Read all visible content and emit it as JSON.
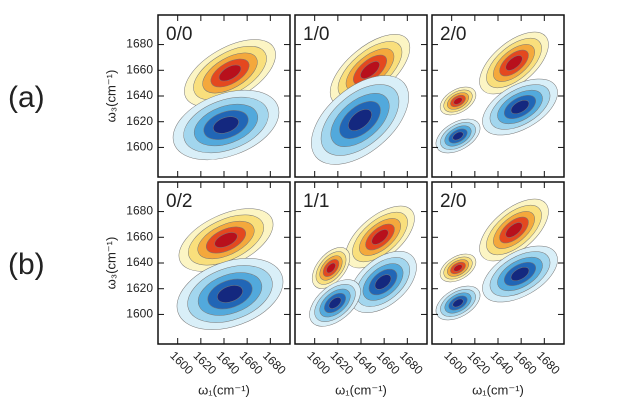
{
  "chart_data": {
    "type": "contour",
    "row_labels": [
      "(a)",
      "(b)"
    ],
    "panels": [
      {
        "label": "0/0"
      },
      {
        "label": "1/0"
      },
      {
        "label": "2/0"
      },
      {
        "label": "0/2"
      },
      {
        "label": "1/1"
      },
      {
        "label": "2/0"
      }
    ],
    "ylabels": [
      "ω₃(cm⁻¹)",
      "ω₃(cm⁻¹)"
    ],
    "xlabels": [
      "ω₁(cm⁻¹)",
      "ω₁(cm⁻¹)",
      "ω₁(cm⁻¹)"
    ],
    "xlim": [
      1583,
      1697
    ],
    "xticks": [
      1600,
      1620,
      1640,
      1660,
      1680
    ],
    "ylim": [
      1577,
      1703
    ],
    "yticks": [
      1600,
      1620,
      1640,
      1660,
      1680
    ]
  }
}
